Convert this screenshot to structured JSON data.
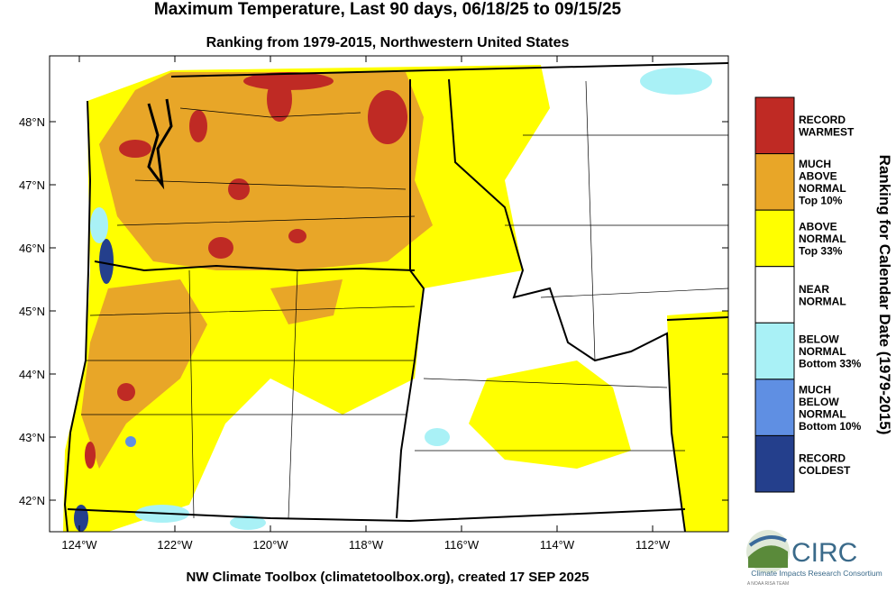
{
  "title": "Maximum Temperature, Last 90 days, 06/18/25 to 09/15/25",
  "subtitle": "Ranking from 1979-2015, Northwestern United States",
  "lat_ticks": [
    "48°N",
    "47°N",
    "46°N",
    "45°N",
    "44°N",
    "43°N",
    "42°N"
  ],
  "lon_ticks": [
    "124°W",
    "122°W",
    "120°W",
    "118°W",
    "116°W",
    "114°W",
    "112°W"
  ],
  "legend": {
    "title": "Ranking for Calendar Date (1979-2015)",
    "items": [
      {
        "lines": [
          "RECORD",
          "WARMEST"
        ],
        "color": "#bf2a24"
      },
      {
        "lines": [
          "MUCH",
          "ABOVE",
          "NORMAL",
          "Top 10%"
        ],
        "color": "#e8a628"
      },
      {
        "lines": [
          "ABOVE",
          "NORMAL",
          "Top 33%"
        ],
        "color": "#ffff00"
      },
      {
        "lines": [
          "NEAR",
          "NORMAL"
        ],
        "color": "#ffffff"
      },
      {
        "lines": [
          "BELOW",
          "NORMAL",
          "Bottom 33%"
        ],
        "color": "#a9f1f6"
      },
      {
        "lines": [
          "MUCH",
          "BELOW",
          "NORMAL",
          "Bottom 10%"
        ],
        "color": "#5f8fe3"
      },
      {
        "lines": [
          "RECORD",
          "COLDEST"
        ],
        "color": "#243f8c"
      }
    ]
  },
  "footer": "NW Climate Toolbox (climatetoolbox.org), created 17 SEP 2025",
  "logo": {
    "name": "CIRC",
    "full_name": "Climate Impacts Research Consortium",
    "tagline": "A NOAA RISA TEAM"
  }
}
